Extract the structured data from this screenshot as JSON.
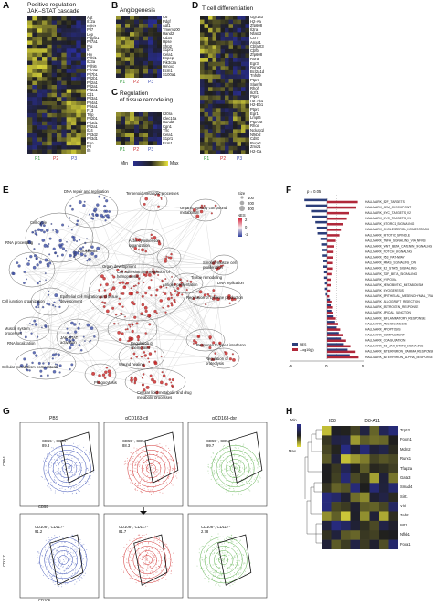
{
  "figure": {
    "panels": {
      "A": {
        "letter": "A",
        "title": "Positive regulation\nJAK–STAT cascade",
        "genes": [
          "Agt",
          "Il12a",
          "Prlhl1",
          "Ptl7",
          "Lep",
          "Pdgfb1",
          "Ptl7a1",
          "Ptg",
          "Il7",
          "Hjv",
          "Prlhl1",
          "Il23a",
          "Prlhl6",
          "Ptl7a2",
          "Ptl7b1",
          "Ptl2b1",
          "Ptl2a1",
          "Ptl2a1",
          "Ptl2a1",
          "Cd1",
          "Ptl3a1",
          "Ptl4a1",
          "Ptl4a1",
          "F13",
          "Tslp",
          "Ptl2b1",
          "Ptl3d1",
          "Ptl2a1",
          "Il24",
          "Ptl3d2",
          "Ptl3d1",
          "Epo",
          "Prl",
          "Il5"
        ],
        "groups": [
          "P1",
          "P2",
          "P3"
        ]
      },
      "B": {
        "letter": "B",
        "title": "Angiogenesis",
        "genes": [
          "C6",
          "Pdgf",
          "Agt1",
          "Tmem100",
          "Hand2",
          "Cd34",
          "Hpse",
          "Sfrp2",
          "S1pr1",
          "Cela1",
          "Enpep",
          "Pik3c2a",
          "Hmox1",
          "Ecm1",
          "S100a1"
        ],
        "groups": [
          "P1",
          "P2",
          "P3"
        ]
      },
      "C": {
        "letter": "C",
        "title": "Regulation\nof tissue remodeling",
        "genes": [
          "Il20ra",
          "Clec10a",
          "Hand2",
          "Cgn1",
          "Tfrc",
          "Cela1",
          "S1pr1",
          "Ecm1"
        ],
        "groups": [
          "P1",
          "P2",
          "P3"
        ]
      },
      "D": {
        "letter": "D",
        "title": "T cell differentiation",
        "genes": [
          "Ggr183",
          "H2-Aa",
          "Zfp608",
          "Il2ra",
          "Nfatc3",
          "Ccr7",
          "Anxa1",
          "Cbfa2t3",
          "Cbfb",
          "Zfp608",
          "Rora",
          "Egr3",
          "Runx3",
          "Bcl2a1d",
          "Tnfsf9",
          "Ptprc",
          "Slamf6",
          "Rhoh",
          "Ikzf1",
          "Ptprc",
          "H2-Ab1",
          "H2-Eb1",
          "Ptprc",
          "Egr1",
          "Lmpt6",
          "Ptpn22",
          "Rhoa",
          "Nckap1l",
          "Nfkbiz",
          "Cd83",
          "Runx1",
          "Zmiz1",
          "H2-Oa"
        ],
        "groups": [
          "P1",
          "P2",
          "P3"
        ]
      },
      "colorbar": {
        "min": "Min",
        "max": "Max"
      },
      "E": {
        "letter": "E",
        "clusters": [
          "DNA repair and replication",
          "Terpenoid metabolic processes",
          "Organic hydroxy compound metabolism",
          "Cell cycle",
          "RNA processing",
          "Cytokinesis",
          "Actin cytoskeleton organization",
          "Organ development",
          "Cell adhesion and regulation of hemopoiesis",
          "Antigen presentation",
          "Smooth-muscle cell proliferation",
          "Tissue remodeling",
          "DNA replication",
          "Cell junction organization",
          "Epithelial cell migration and tissue development",
          "Regulation of cytokine production",
          "Muscle system processes",
          "RNA localization",
          "JAK-STAT activation",
          "Regulation of chemotaxis",
          "Response to type I interferon",
          "Regulation of proteolysis",
          "Cellular metabolism homeostasis",
          "Wound healing",
          "Phagocytosis",
          "Cellular lipid metabolic and drug metabolic processes"
        ],
        "legend_size_title": "Size",
        "legend_sizes": [
          "100",
          "200",
          "300"
        ],
        "legend_nes_title": "NES",
        "legend_nes": [
          "2",
          "0",
          "-2"
        ]
      },
      "F": {
        "letter": "F",
        "pline": "p = 0.05",
        "legend": [
          "NES",
          "-Log10(p)"
        ],
        "xticks": [
          "-5",
          "0",
          "5"
        ],
        "hallmarks": [
          "HALLMARK_E2F_TARGETS",
          "HALLMARK_G2M_CHECKPOINT",
          "HALLMARK_MYC_TARGETS_V2",
          "HALLMARK_MYC_TARGETS_V1",
          "HALLMARK_MTORC1_SIGNALING",
          "HALLMARK_CHOLESTEROL_HOMEOSTASIS",
          "HALLMARK_MITOTIC_SPINDLE",
          "HALLMARK_TNFA_SIGNALING_VIA_NFKB",
          "HALLMARK_WNT_BETA_CATENIN_SIGNALING",
          "HALLMARK_NOTCH_SIGNALING",
          "HALLMARK_P53_PATHWAY",
          "HALLMARK_KRAS_SIGNALING_DN",
          "HALLMARK_IL2_STAT5_SIGNALING",
          "HALLMARK_TGF_BETA_SIGNALING",
          "HALLMARK_HYPOXIA",
          "HALLMARK_XENOBIOTIC_METABOLISM",
          "HALLMARK_MYOGENESIS",
          "HALLMARK_EPITHELIAL_MESENCHYMAL_TRANSITION",
          "HALLMARK_ALLOGRAFT_REJECTION",
          "HALLMARK_ESTROGEN_RESPONSE",
          "HALLMARK_APICAL_JUNCTION",
          "HALLMARK_INFLAMMATORY_RESPONSE",
          "HALLMARK_ANGIOGENESIS",
          "HALLMARK_APOPTOSIS",
          "HALLMARK_COMPLEMENT",
          "HALLMARK_COAGULATION",
          "HALLMARK_IL6_JAK_STAT3_SIGNALING",
          "HALLMARK_INTERFERON_GAMMA_RESPONSE",
          "HALLMARK_INTERFERON_ALPHA_RESPONSE"
        ]
      },
      "G": {
        "letter": "G",
        "columns": [
          "PBS",
          "αCD163-ctl",
          "αCD163-dxr"
        ],
        "top_gates": [
          "CD55⁻, CD54⁺\n89.3",
          "CD55⁻, CD54⁺\n88.3",
          "CD55⁻, CD54⁺\n99.7"
        ],
        "bottom_gates": [
          "CD106⁺, CD117⁺\n91.2",
          "CD106⁺, CD117⁺\n81.7",
          "CD106⁺, CD117⁺\n2.78"
        ],
        "axes": {
          "top_y": "CD54",
          "top_x": "CD55",
          "bottom_y": "CD117",
          "bottom_x": "CD106"
        }
      },
      "H": {
        "letter": "H",
        "col_labels": [
          "ID8",
          "ID8-A11"
        ],
        "scale": {
          "min": "Min",
          "max": "Max"
        },
        "genes": [
          "Trp53",
          "Foxm1",
          "Mdm2",
          "Runx1",
          "Tfap2a",
          "Gata3",
          "Smad4",
          "Sirt1",
          "Vhl",
          "Zeb2",
          "Wt1",
          "Nfkb1",
          "Foxa1"
        ]
      }
    }
  },
  "chart_data": [
    {
      "type": "bar",
      "title": "",
      "categories": [
        "HALLMARK_E2F_TARGETS",
        "HALLMARK_G2M_CHECKPOINT",
        "HALLMARK_MYC_TARGETS_V2",
        "HALLMARK_MYC_TARGETS_V1",
        "HALLMARK_MTORC1_SIGNALING",
        "HALLMARK_CHOLESTEROL_HOMEOSTASIS",
        "HALLMARK_MITOTIC_SPINDLE",
        "HALLMARK_TNFA_SIGNALING_VIA_NFKB",
        "HALLMARK_WNT_BETA_CATENIN_SIGNALING",
        "HALLMARK_NOTCH_SIGNALING",
        "HALLMARK_P53_PATHWAY",
        "HALLMARK_KRAS_SIGNALING_DN",
        "HALLMARK_IL2_STAT5_SIGNALING",
        "HALLMARK_TGF_BETA_SIGNALING",
        "HALLMARK_HYPOXIA",
        "HALLMARK_XENOBIOTIC_METABOLISM",
        "HALLMARK_MYOGENESIS",
        "HALLMARK_EPITHELIAL_MESENCHYMAL_TRANSITION",
        "HALLMARK_ALLOGRAFT_REJECTION",
        "HALLMARK_ESTROGEN_RESPONSE",
        "HALLMARK_APICAL_JUNCTION",
        "HALLMARK_INFLAMMATORY_RESPONSE",
        "HALLMARK_ANGIOGENESIS",
        "HALLMARK_APOPTOSIS",
        "HALLMARK_COMPLEMENT",
        "HALLMARK_COAGULATION",
        "HALLMARK_IL6_JAK_STAT3_SIGNALING",
        "HALLMARK_INTERFERON_GAMMA_RESPONSE",
        "HALLMARK_INTERFERON_ALPHA_RESPONSE"
      ],
      "series": [
        {
          "name": "NES",
          "color": "#2c3e7a",
          "values": [
            -3.1,
            -2.9,
            -2.2,
            -2.0,
            -1.6,
            -1.4,
            -1.3,
            -0.9,
            -0.8,
            -0.7,
            -0.6,
            -0.5,
            -0.5,
            -0.4,
            -0.4,
            -0.3,
            -0.3,
            -0.2,
            0.4,
            0.5,
            0.6,
            0.9,
            1.1,
            1.3,
            1.6,
            1.9,
            2.3,
            2.8,
            3.1
          ]
        },
        {
          "name": "-Log10(p)",
          "color": "#b0283a",
          "values": [
            4.2,
            4.0,
            3.0,
            2.7,
            2.2,
            1.9,
            1.7,
            1.2,
            1.0,
            0.9,
            0.8,
            0.7,
            0.7,
            0.6,
            0.5,
            0.5,
            0.4,
            0.3,
            0.6,
            0.7,
            0.8,
            1.2,
            1.5,
            1.8,
            2.2,
            2.6,
            3.2,
            3.9,
            4.3
          ]
        }
      ],
      "xlim": [
        -5,
        5
      ],
      "xticks": [
        -5,
        0,
        5
      ]
    }
  ]
}
